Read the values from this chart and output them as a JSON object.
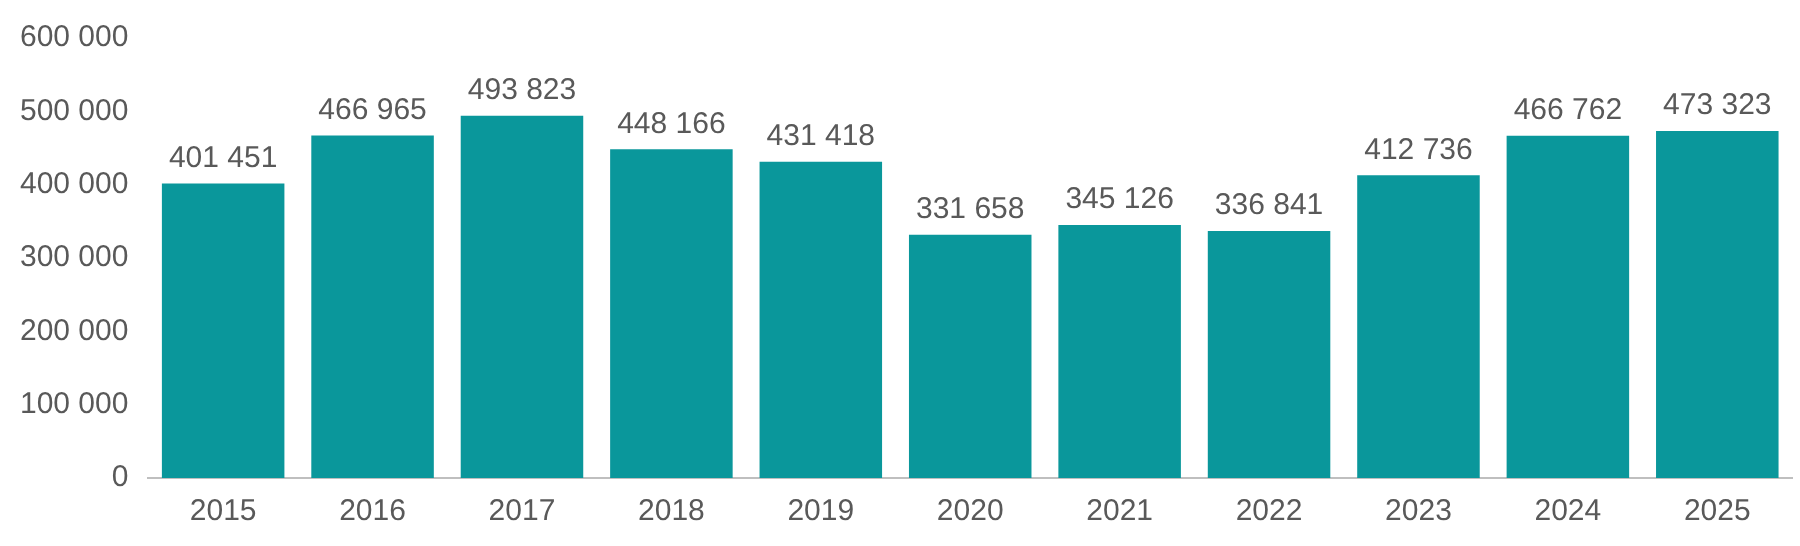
{
  "chart_data": {
    "type": "bar",
    "categories": [
      "2015",
      "2016",
      "2017",
      "2018",
      "2019",
      "2020",
      "2021",
      "2022",
      "2023",
      "2024",
      "2025"
    ],
    "values": [
      401451,
      466965,
      493823,
      448166,
      431418,
      331658,
      345126,
      336841,
      412736,
      466762,
      473323
    ],
    "value_labels": [
      "401 451",
      "466 965",
      "493 823",
      "448 166",
      "431 418",
      "331 658",
      "345 126",
      "336 841",
      "412 736",
      "466 762",
      "473 323"
    ],
    "color": "#0a979b",
    "ylim": [
      0,
      600000
    ],
    "yticks": [
      0,
      {
        "value": 100000,
        "label": "100 000"
      },
      {
        "value": 200000,
        "label": "200 000"
      },
      {
        "value": 300000,
        "label": "300 000"
      },
      {
        "value": 400000,
        "label": "400 000"
      },
      {
        "value": 500000,
        "label": "500 000"
      },
      {
        "value": 600000,
        "label": "600 000"
      }
    ],
    "grid": false,
    "legend": false
  }
}
